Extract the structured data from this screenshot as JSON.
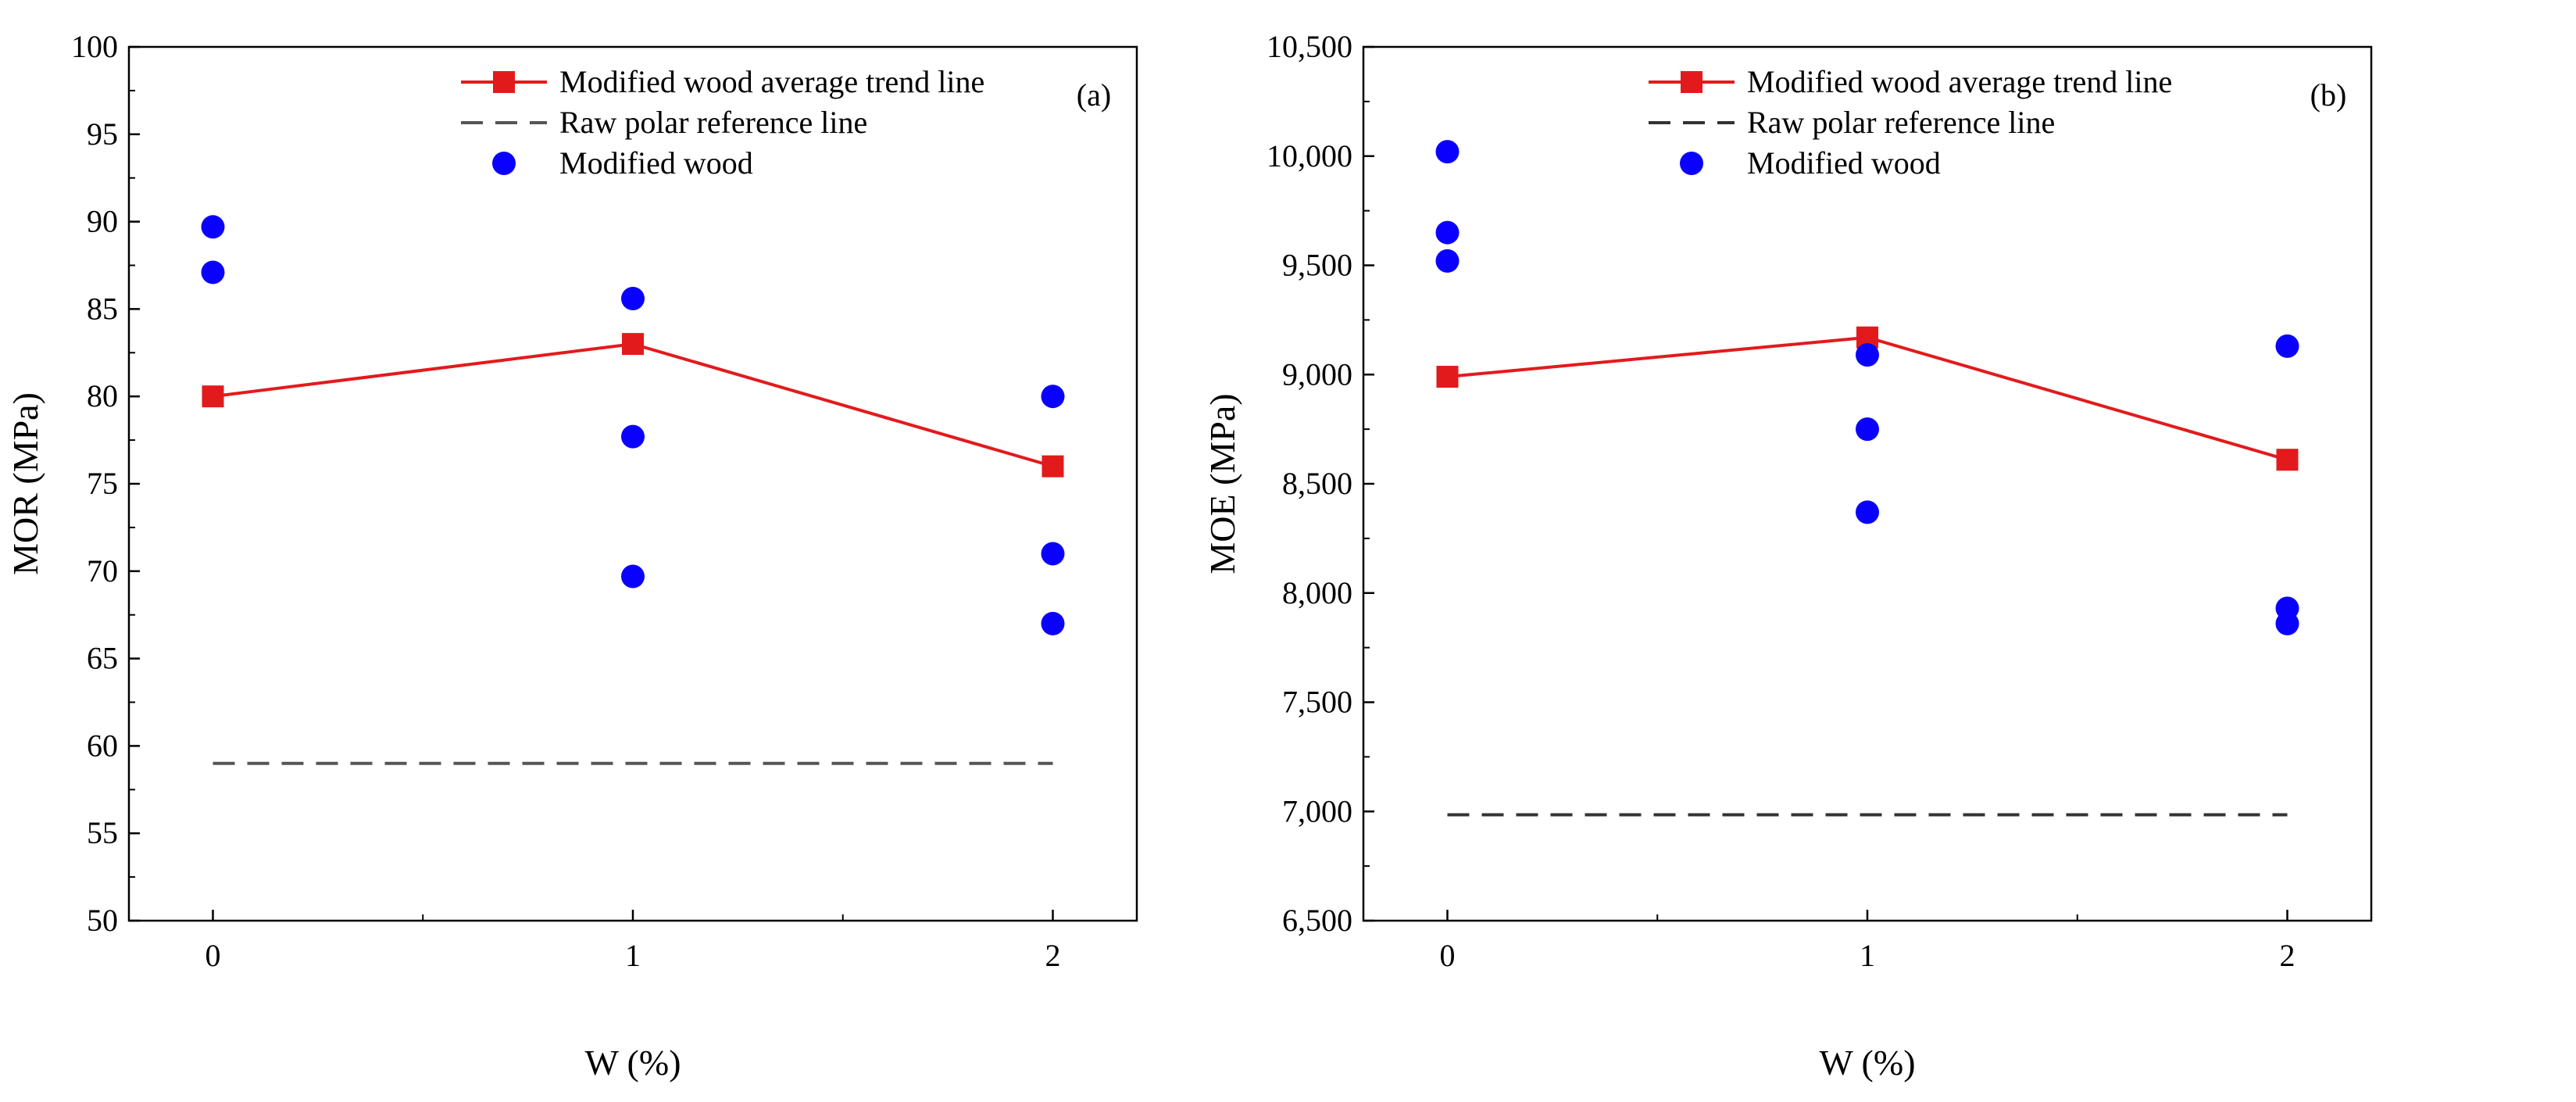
{
  "chart_data": [
    {
      "panel_label": "(a)",
      "type": "line+scatter",
      "xlabel": "W (%)",
      "ylabel": "MOR (MPa)",
      "xlim": [
        -0.2,
        2.2
      ],
      "ylim": [
        50,
        100
      ],
      "x_ticks": [
        0,
        1,
        2
      ],
      "x_tick_labels": [
        "0",
        "1",
        "2"
      ],
      "y_ticks": [
        50,
        55,
        60,
        65,
        70,
        75,
        80,
        85,
        90,
        95,
        100
      ],
      "y_tick_labels": [
        "50",
        "55",
        "60",
        "65",
        "70",
        "75",
        "80",
        "85",
        "90",
        "95",
        "100"
      ],
      "legend": {
        "trend": "Modified wood average trend line",
        "reference": "Raw polar reference line",
        "scatter": "Modified wood"
      },
      "trend_line": {
        "x": [
          0,
          1,
          2
        ],
        "y": [
          80,
          83,
          76
        ]
      },
      "reference_line": {
        "x": [
          0,
          2
        ],
        "y": [
          59,
          59
        ]
      },
      "scatter_points": [
        {
          "x": 0,
          "y": 89.7
        },
        {
          "x": 0,
          "y": 87.1
        },
        {
          "x": 1,
          "y": 85.6
        },
        {
          "x": 1,
          "y": 77.7
        },
        {
          "x": 1,
          "y": 69.7
        },
        {
          "x": 2,
          "y": 80.0
        },
        {
          "x": 2,
          "y": 71.0
        },
        {
          "x": 2,
          "y": 67.0
        }
      ],
      "colors": {
        "trend": "#e31a1c",
        "reference": "#555555",
        "scatter": "#0a00ff"
      }
    },
    {
      "panel_label": "(b)",
      "type": "line+scatter",
      "xlabel": "W (%)",
      "ylabel": "MOE (MPa)",
      "xlim": [
        -0.2,
        2.2
      ],
      "ylim": [
        6500,
        10500
      ],
      "x_ticks": [
        0,
        1,
        2
      ],
      "x_tick_labels": [
        "0",
        "1",
        "2"
      ],
      "y_ticks": [
        6500,
        7000,
        7500,
        8000,
        8500,
        9000,
        9500,
        10000,
        10500
      ],
      "y_tick_labels": [
        "6,500",
        "7,000",
        "7,500",
        "8,000",
        "8,500",
        "9,000",
        "9,500",
        "10,000",
        "10,500"
      ],
      "legend": {
        "trend": "Modified wood average trend line",
        "reference": "Raw polar reference line",
        "scatter": "Modified wood"
      },
      "trend_line": {
        "x": [
          0,
          1,
          2
        ],
        "y": [
          8990,
          9170,
          8610
        ]
      },
      "reference_line": {
        "x": [
          0,
          2
        ],
        "y": [
          6985,
          6985
        ]
      },
      "scatter_points": [
        {
          "x": 0,
          "y": 10020
        },
        {
          "x": 0,
          "y": 9650
        },
        {
          "x": 0,
          "y": 9520
        },
        {
          "x": 1,
          "y": 9090
        },
        {
          "x": 1,
          "y": 8750
        },
        {
          "x": 1,
          "y": 8370
        },
        {
          "x": 2,
          "y": 9130
        },
        {
          "x": 2,
          "y": 7930
        },
        {
          "x": 2,
          "y": 7860
        }
      ],
      "colors": {
        "trend": "#e31a1c",
        "reference": "#333333",
        "scatter": "#0a00ff"
      }
    }
  ]
}
